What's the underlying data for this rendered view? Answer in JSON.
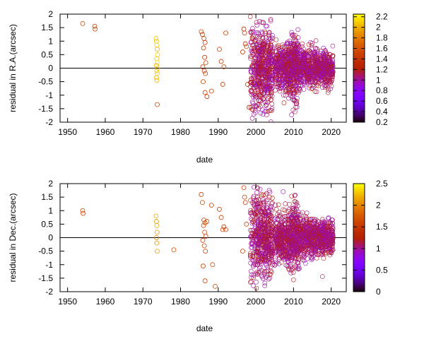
{
  "chart_data": [
    {
      "type": "scatter",
      "xlabel": "date",
      "ylabel": "residual in R.A.(arcsec)",
      "xlim": [
        1948,
        2024
      ],
      "ylim": [
        -2,
        2
      ],
      "xticks": [
        1950,
        1960,
        1970,
        1980,
        1990,
        2000,
        2010,
        2020
      ],
      "yticks": [
        -2,
        -1.5,
        -1,
        -0.5,
        0,
        0.5,
        1,
        1.5,
        2
      ],
      "ytick_labels": [
        "-2",
        "-1.5",
        "-1",
        "-0.5",
        "0",
        "0.5",
        "1",
        "1.5",
        "2"
      ],
      "reference_line_y": 0,
      "marker": "open-circle",
      "grid": false,
      "colorbar": {
        "range": [
          0.2,
          2.25
        ],
        "ticks": [
          0.2,
          0.4,
          0.6,
          0.8,
          1,
          1.2,
          1.4,
          1.6,
          1.8,
          2,
          2.2
        ],
        "tick_labels": [
          "0.2",
          "0.4",
          "0.6",
          "0.8",
          "1",
          "1.2",
          "1.4",
          "1.6",
          "1.8",
          "2",
          "2.2"
        ],
        "colormap": "black-purple-red-orange-yellow"
      },
      "series": [
        {
          "x": [
            1954,
            1957.2,
            1957.3,
            1973.5,
            1973.6,
            1973.7,
            1973.8,
            1973.9,
            1973.7,
            1973.8,
            1973.6,
            1973.9,
            1973.7,
            1973.8,
            1973.6,
            1973.7,
            1973.8,
            1985.5,
            1985.8,
            1986.2,
            1986.5,
            1986.1,
            1986.4,
            1986.7,
            1985.9,
            1986.3,
            1986.6,
            1986.0,
            1986.5,
            1987.0,
            1988.2,
            1990.3,
            1990.8,
            1991.5,
            1991.2,
            1992.0,
            1996.8,
            1997.0,
            1997.2,
            1997.5,
            1996.5,
            1997.8,
            1998.2
          ],
          "y": [
            1.65,
            1.55,
            1.45,
            1.1,
            1.0,
            0.85,
            0.7,
            0.5,
            0.35,
            0.2,
            0.1,
            0.0,
            -0.1,
            -0.2,
            -0.35,
            -0.45,
            -1.35,
            1.35,
            1.25,
            1.1,
            0.95,
            0.75,
            0.4,
            0.2,
            0.05,
            -0.1,
            -0.2,
            -0.5,
            -0.9,
            -1.05,
            -0.85,
            0.7,
            0.25,
            0.05,
            -0.6,
            1.3,
            1.45,
            1.3,
            0.9,
            0.8,
            0.6,
            -0.6,
            -1.45
          ],
          "c": [
            1.55,
            1.5,
            1.5,
            2.1,
            2.05,
            2.1,
            2.0,
            2.1,
            2.05,
            2.15,
            2.0,
            2.1,
            2.05,
            2.1,
            2.0,
            2.05,
            1.55,
            1.5,
            1.45,
            1.5,
            1.45,
            1.5,
            1.45,
            1.5,
            1.45,
            1.5,
            1.45,
            1.5,
            1.5,
            1.45,
            1.5,
            1.45,
            1.5,
            1.45,
            1.5,
            1.45,
            1.4,
            1.45,
            1.4,
            1.5,
            1.4,
            1.45,
            1.3
          ]
        }
      ]
    },
    {
      "type": "scatter",
      "xlabel": "date",
      "ylabel": "residual in Dec.(arcsec)",
      "xlim": [
        1948,
        2024
      ],
      "ylim": [
        -2,
        2
      ],
      "xticks": [
        1950,
        1960,
        1970,
        1980,
        1990,
        2000,
        2010,
        2020
      ],
      "yticks": [
        -2,
        -1.5,
        -1,
        -0.5,
        0,
        0.5,
        1,
        1.5,
        2
      ],
      "ytick_labels": [
        "-2",
        "-1.5",
        "-1",
        "-0.5",
        "0",
        "0.5",
        "1",
        "1.5",
        "2"
      ],
      "reference_line_y": 0,
      "marker": "open-circle",
      "grid": false,
      "colorbar": {
        "range": [
          0,
          2.5
        ],
        "ticks": [
          0,
          0.5,
          1,
          1.5,
          2,
          2.5
        ],
        "tick_labels": [
          "0",
          "0.5",
          "1",
          "1.5",
          "2",
          "2.5"
        ],
        "colormap": "black-purple-red-orange-yellow"
      },
      "series": [
        {
          "x": [
            1954,
            1954.1,
            1973.5,
            1973.6,
            1973.7,
            1973.8,
            1973.6,
            1973.7,
            1973.8,
            1978.2,
            1985.5,
            1985.8,
            1986.2,
            1986.5,
            1986.1,
            1986.4,
            1986.7,
            1985.9,
            1986.3,
            1986.6,
            1986.0,
            1986.5,
            1987.0,
            1988.2,
            1988.5,
            1990.3,
            1990.8,
            1991.5,
            1991.2,
            1992.0,
            1989.2,
            1996.8,
            1997.0,
            1997.2,
            1997.5,
            1996.5
          ],
          "y": [
            1.0,
            0.9,
            0.8,
            0.6,
            0.45,
            0.2,
            0.0,
            -0.2,
            -0.5,
            -0.45,
            1.6,
            1.3,
            0.65,
            0.55,
            0.45,
            0.2,
            0.05,
            -0.1,
            -0.3,
            -0.5,
            -1.05,
            -1.6,
            0.6,
            1.2,
            -1.0,
            1.05,
            0.75,
            0.4,
            0.3,
            0.3,
            -1.8,
            1.85,
            1.5,
            1.3,
            0.5,
            -0.5
          ],
          "c": [
            1.65,
            1.6,
            2.2,
            2.1,
            2.2,
            2.1,
            2.0,
            2.1,
            2.15,
            1.7,
            1.6,
            1.65,
            1.55,
            1.6,
            1.65,
            1.6,
            1.55,
            1.6,
            1.65,
            1.55,
            1.6,
            1.6,
            1.65,
            1.55,
            1.6,
            1.55,
            1.6,
            1.55,
            1.6,
            1.55,
            1.6,
            1.55,
            1.6,
            1.55,
            1.5,
            1.55
          ]
        }
      ]
    }
  ]
}
